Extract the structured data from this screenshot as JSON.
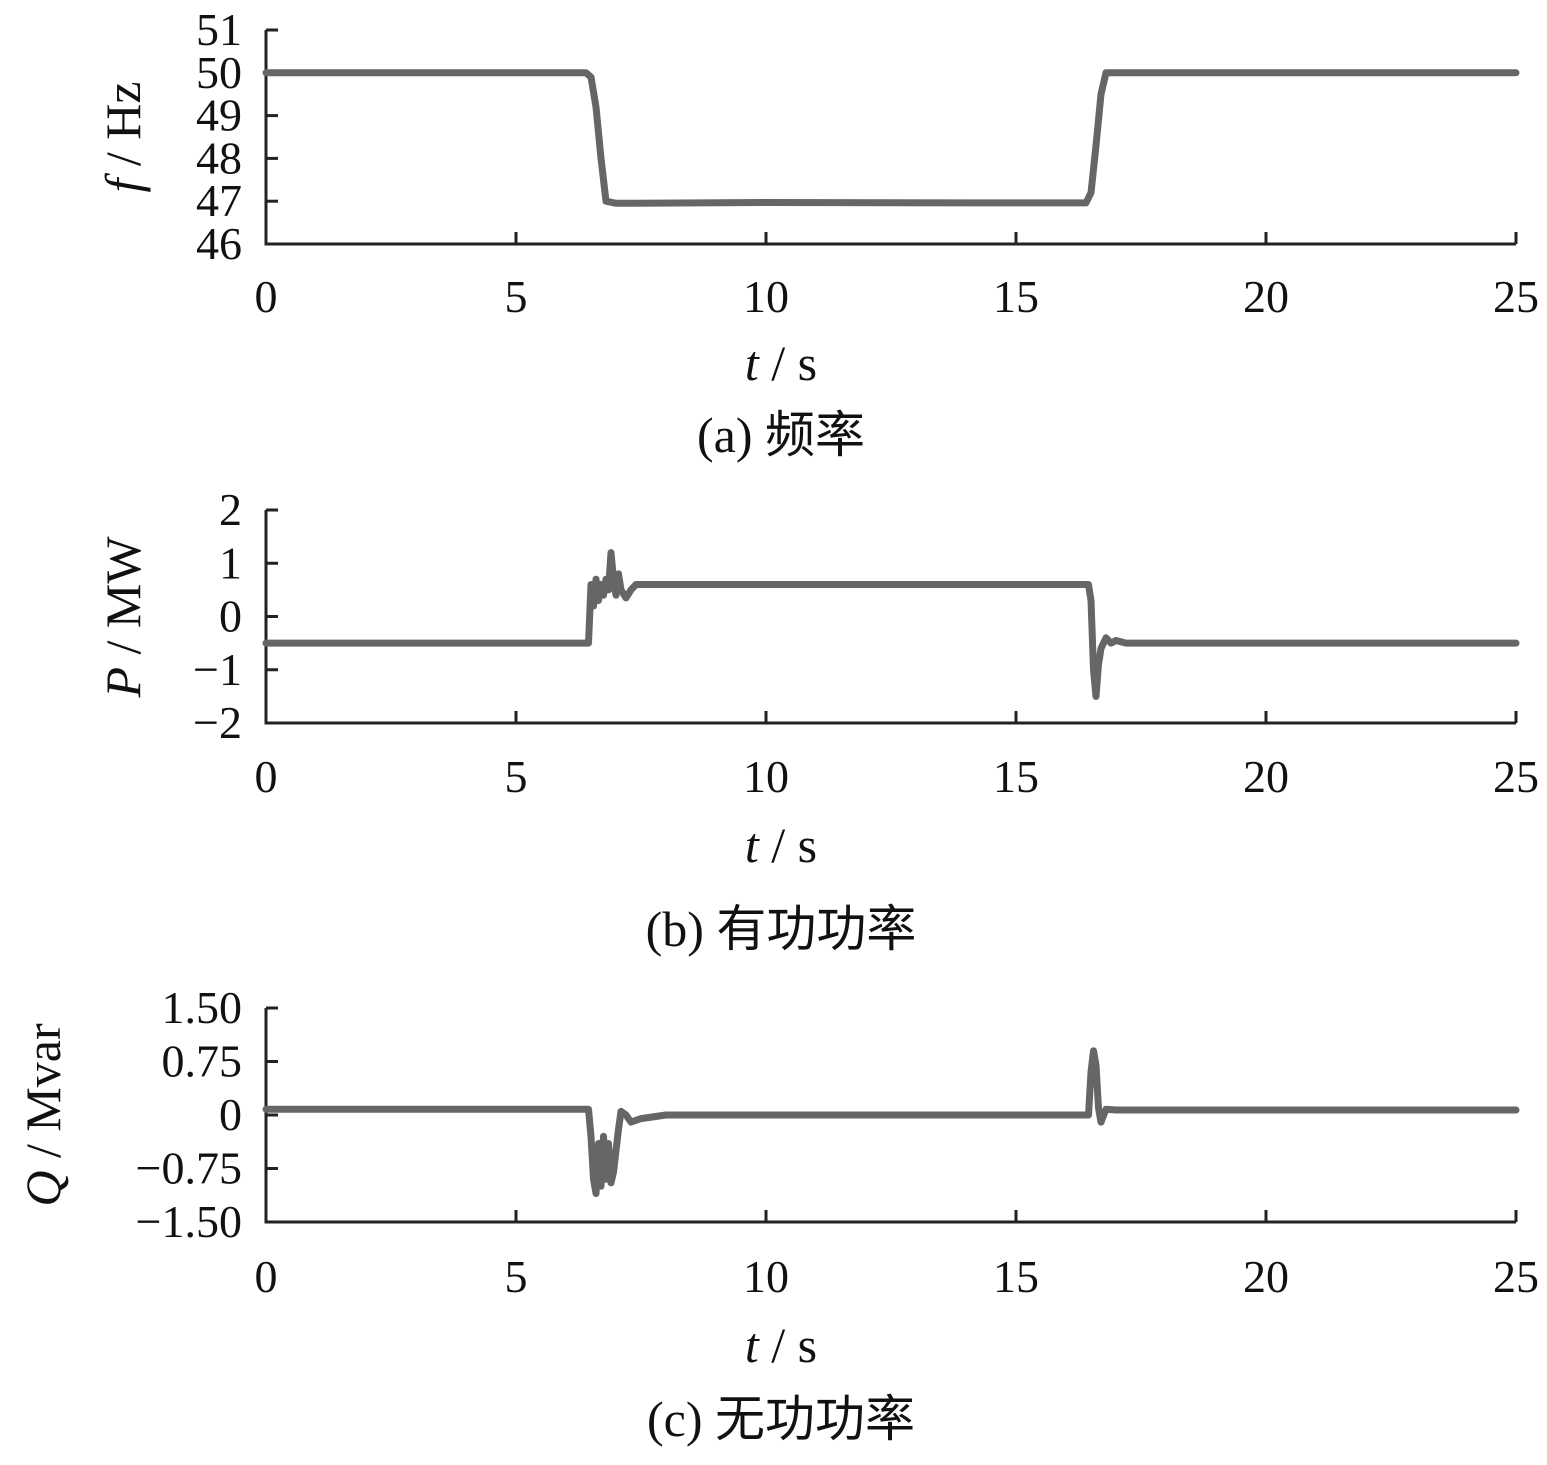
{
  "chart_data": [
    {
      "type": "line",
      "caption": "(a)  频率",
      "ylabel_var": "f",
      "ylabel_unit": " / Hz",
      "xlabel_var": "t",
      "xlabel_unit": " / s",
      "xlim": [
        0,
        25
      ],
      "ylim": [
        46,
        51
      ],
      "xticks": [
        0,
        5,
        10,
        15,
        20,
        25
      ],
      "xtick_labels": [
        "0",
        "5",
        "10",
        "15",
        "20",
        "25"
      ],
      "yticks": [
        46,
        47,
        48,
        49,
        50,
        51
      ],
      "ytick_labels": [
        "46",
        "47",
        "48",
        "49",
        "50",
        "51"
      ],
      "grid": false,
      "line_color": "#666666",
      "series": [
        {
          "x": [
            0,
            6.4,
            6.5,
            6.6,
            6.7,
            6.8,
            7.0,
            10,
            14,
            16.4,
            16.5,
            16.6,
            16.7,
            16.8,
            20,
            25
          ],
          "y": [
            50,
            50,
            49.9,
            49.2,
            48,
            47,
            46.95,
            46.97,
            46.96,
            46.96,
            47.2,
            48.3,
            49.5,
            50,
            50,
            50
          ]
        }
      ]
    },
    {
      "type": "line",
      "caption": "(b)  有功功率",
      "ylabel_var": "P",
      "ylabel_unit": " / MW",
      "xlabel_var": "t",
      "xlabel_unit": " / s",
      "xlim": [
        0,
        25
      ],
      "ylim": [
        -2,
        2
      ],
      "xticks": [
        0,
        5,
        10,
        15,
        20,
        25
      ],
      "xtick_labels": [
        "0",
        "5",
        "10",
        "15",
        "20",
        "25"
      ],
      "yticks": [
        -2,
        -1,
        0,
        1,
        2
      ],
      "ytick_labels": [
        "−2",
        "−1",
        "0",
        "1",
        "2"
      ],
      "grid": false,
      "line_color": "#666666",
      "series": [
        {
          "x": [
            0,
            6.45,
            6.5,
            6.55,
            6.6,
            6.65,
            6.7,
            6.75,
            6.8,
            6.85,
            6.9,
            6.95,
            7.0,
            7.05,
            7.1,
            7.2,
            7.3,
            7.4,
            7.5,
            10,
            16.45,
            16.5,
            16.55,
            16.6,
            16.65,
            16.7,
            16.8,
            16.9,
            17.0,
            17.2,
            20,
            25
          ],
          "y": [
            -0.5,
            -0.5,
            0.6,
            0.2,
            0.7,
            0.3,
            0.6,
            0.4,
            0.7,
            0.5,
            1.2,
            0.7,
            0.4,
            0.8,
            0.5,
            0.35,
            0.5,
            0.6,
            0.6,
            0.6,
            0.6,
            0.3,
            -1.0,
            -1.5,
            -0.9,
            -0.6,
            -0.4,
            -0.5,
            -0.45,
            -0.5,
            -0.5,
            -0.5
          ]
        }
      ]
    },
    {
      "type": "line",
      "caption": "(c)  无功功率",
      "ylabel_var": "Q",
      "ylabel_unit": " / Mvar",
      "xlabel_var": "t",
      "xlabel_unit": " / s",
      "xlim": [
        0,
        25
      ],
      "ylim": [
        -1.5,
        1.5
      ],
      "xticks": [
        0,
        5,
        10,
        15,
        20,
        25
      ],
      "xtick_labels": [
        "0",
        "5",
        "10",
        "15",
        "20",
        "25"
      ],
      "yticks": [
        -1.5,
        -0.75,
        0,
        0.75,
        1.5
      ],
      "ytick_labels": [
        "−1.50",
        "−0.75",
        "0",
        "0.75",
        "1.50"
      ],
      "grid": false,
      "line_color": "#666666",
      "series": [
        {
          "x": [
            0,
            6.45,
            6.5,
            6.55,
            6.6,
            6.65,
            6.7,
            6.75,
            6.8,
            6.85,
            6.9,
            6.95,
            7.0,
            7.05,
            7.1,
            7.2,
            7.3,
            7.5,
            8.0,
            10,
            16.45,
            16.5,
            16.55,
            16.6,
            16.65,
            16.7,
            16.8,
            17.0,
            20,
            25
          ],
          "y": [
            0.08,
            0.08,
            -0.3,
            -0.9,
            -1.1,
            -0.4,
            -1.0,
            -0.3,
            -0.9,
            -0.4,
            -0.95,
            -0.8,
            -0.5,
            -0.2,
            0.05,
            0.0,
            -0.1,
            -0.05,
            0.0,
            0.0,
            0.0,
            0.6,
            0.9,
            0.7,
            0.1,
            -0.1,
            0.08,
            0.07,
            0.07,
            0.07
          ]
        }
      ]
    }
  ]
}
